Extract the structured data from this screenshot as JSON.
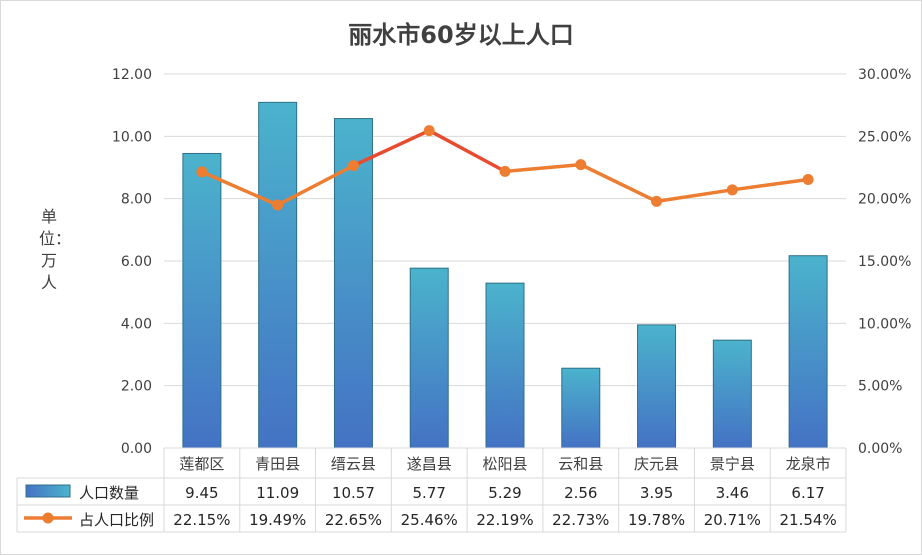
{
  "chart_data": {
    "type": "bar",
    "title": "丽水市60岁以上人口",
    "unit_label": "单位：万人",
    "categories": [
      "莲都区",
      "青田县",
      "缙云县",
      "遂昌县",
      "松阳县",
      "云和县",
      "庆元县",
      "景宁县",
      "龙泉市"
    ],
    "series": [
      {
        "name": "人口数量",
        "type": "bar",
        "axis": "left",
        "values": [
          9.45,
          11.09,
          10.57,
          5.77,
          5.29,
          2.56,
          3.95,
          3.46,
          6.17
        ],
        "labels": [
          "9.45",
          "11.09",
          "10.57",
          "5.77",
          "5.29",
          "2.56",
          "3.95",
          "3.46",
          "6.17"
        ],
        "color": "#4bacc6"
      },
      {
        "name": "占人口比例",
        "type": "line",
        "axis": "right",
        "values": [
          22.15,
          19.49,
          22.65,
          25.46,
          22.19,
          22.73,
          19.78,
          20.71,
          21.54
        ],
        "labels": [
          "22.15%",
          "19.49%",
          "22.65%",
          "25.46%",
          "22.19%",
          "22.73%",
          "19.78%",
          "20.71%",
          "21.54%"
        ],
        "color": "#ed7d31",
        "highlight_color": "#e84c30"
      }
    ],
    "y_left": {
      "ylim": [
        0,
        12
      ],
      "ticks": [
        "0.00",
        "2.00",
        "4.00",
        "6.00",
        "8.00",
        "10.00",
        "12.00"
      ]
    },
    "y_right": {
      "ylim": [
        0,
        30
      ],
      "ticks": [
        "0.00%",
        "5.00%",
        "10.00%",
        "15.00%",
        "20.00%",
        "25.00%",
        "30.00%"
      ]
    },
    "grid": true,
    "legend": "data-table"
  }
}
